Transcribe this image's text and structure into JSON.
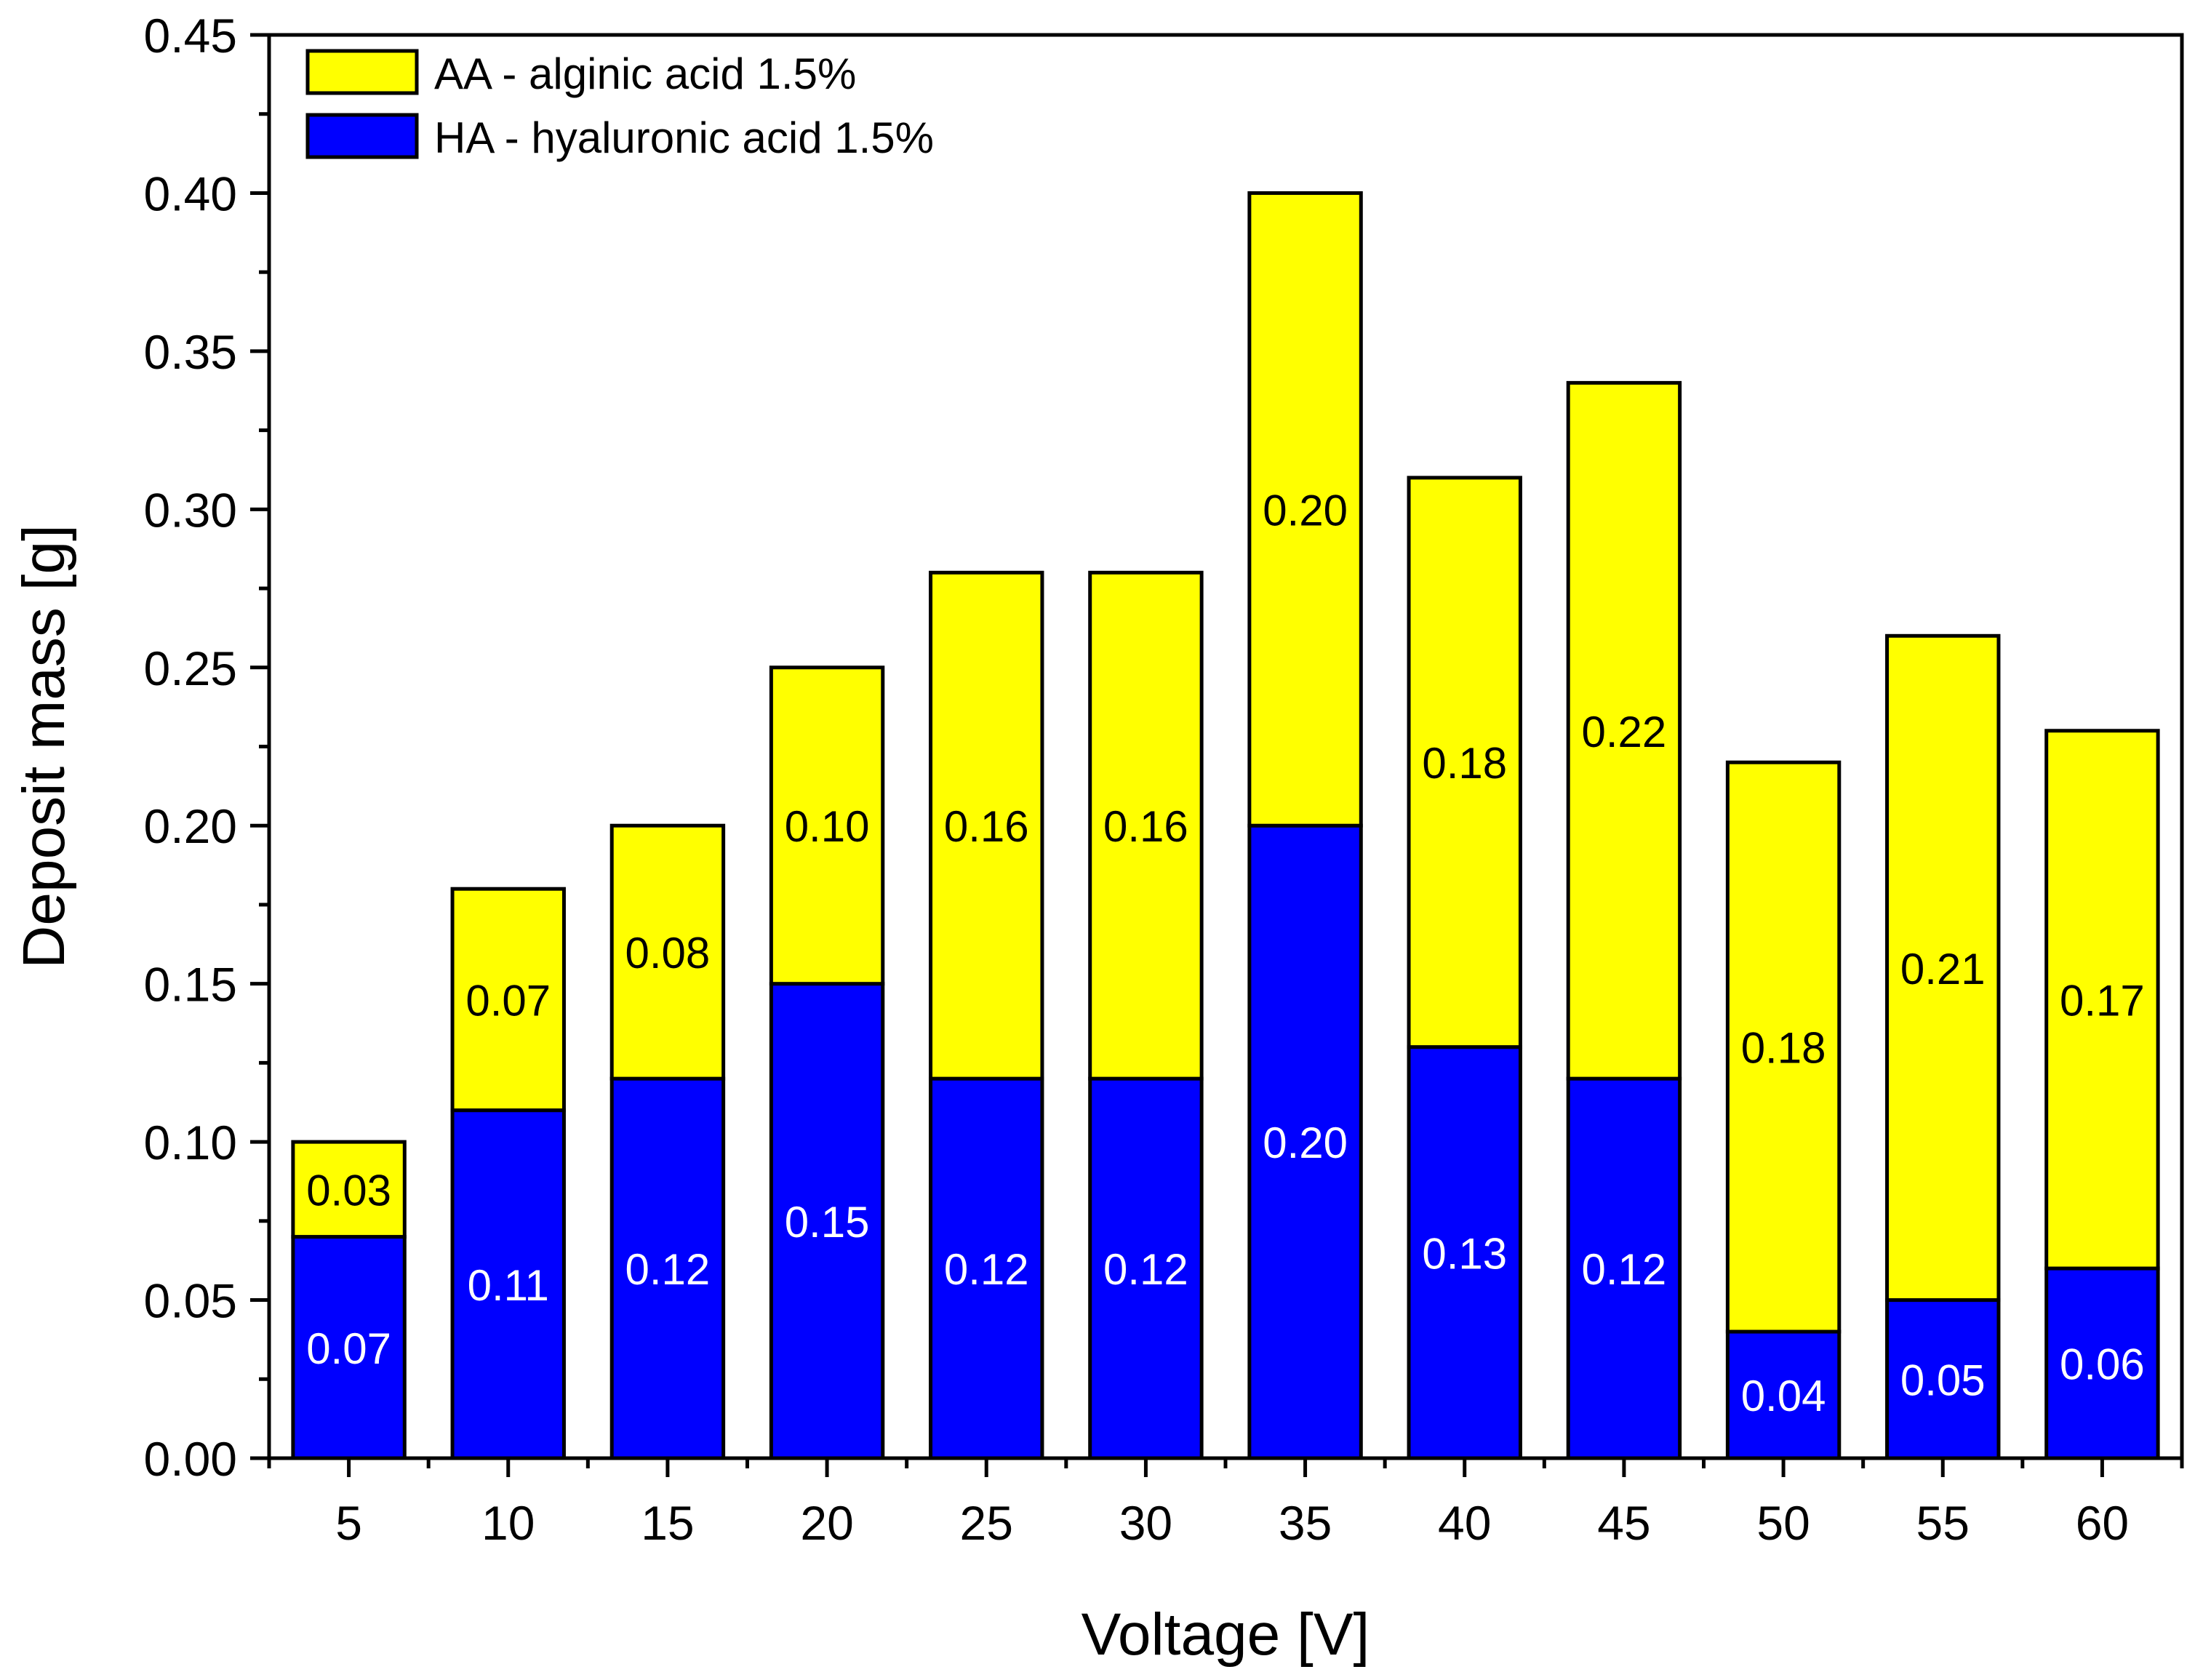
{
  "chart_data": {
    "type": "bar",
    "stacked": true,
    "categories": [
      "5",
      "10",
      "15",
      "20",
      "25",
      "30",
      "35",
      "40",
      "45",
      "50",
      "55",
      "60"
    ],
    "series": [
      {
        "name": "HA - hyaluronic acid 1.5%",
        "color": "#0000ff",
        "label_color": "#ffffff",
        "values": [
          0.07,
          0.11,
          0.12,
          0.15,
          0.12,
          0.12,
          0.2,
          0.13,
          0.12,
          0.04,
          0.05,
          0.06
        ],
        "labels": [
          "0.07",
          "0.11",
          "0.12",
          "0.15",
          "0.12",
          "0.12",
          "0.20",
          "0.13",
          "0.12",
          "0.04",
          "0.05",
          "0.06"
        ]
      },
      {
        "name": "AA - alginic acid 1.5%",
        "color": "#ffff00",
        "label_color": "#000000",
        "values": [
          0.03,
          0.07,
          0.08,
          0.1,
          0.16,
          0.16,
          0.2,
          0.18,
          0.22,
          0.18,
          0.21,
          0.17
        ],
        "labels": [
          "0.03",
          "0.07",
          "0.08",
          "0.10",
          "0.16",
          "0.16",
          "0.20",
          "0.18",
          "0.22",
          "0.18",
          "0.21",
          "0.17"
        ]
      }
    ],
    "legend_order": [
      "AA - alginic acid 1.5%",
      "HA - hyaluronic acid 1.5%"
    ],
    "legend_position": "top-left",
    "title": "",
    "xlabel": "Voltage [V]",
    "ylabel": "Deposit mass [g]",
    "ylim": [
      0,
      0.45
    ],
    "yticks": [
      "0.00",
      "0.05",
      "0.10",
      "0.15",
      "0.20",
      "0.25",
      "0.30",
      "0.35",
      "0.40",
      "0.45"
    ],
    "grid": false
  }
}
